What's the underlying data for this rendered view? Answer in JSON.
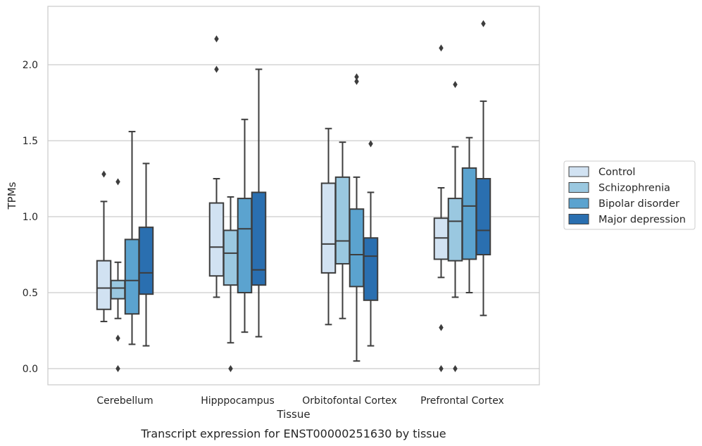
{
  "chart_data": {
    "type": "boxplot",
    "title": "Transcript expression for ENST00000251630 by tissue",
    "xlabel": "Tissue",
    "ylabel": "TPMs",
    "ylim": [
      -0.11,
      2.4
    ],
    "yticks": [
      0.0,
      0.5,
      1.0,
      1.5,
      2.0
    ],
    "ytick_labels": [
      "0.0",
      "0.5",
      "1.0",
      "1.5",
      "2.0"
    ],
    "grid": "horizontal",
    "legend_position": "right",
    "categories": [
      "Cerebellum",
      "Hipppocampus",
      "Orbitofontal Cortex",
      "Prefrontal Cortex"
    ],
    "series": [
      {
        "name": "Control",
        "color": "#d1e2f2",
        "boxes": [
          {
            "whislo": 0.31,
            "q1": 0.39,
            "med": 0.53,
            "q3": 0.71,
            "whishi": 1.1,
            "fliers": [
              1.28
            ]
          },
          {
            "whislo": 0.47,
            "q1": 0.61,
            "med": 0.8,
            "q3": 1.09,
            "whishi": 1.25,
            "fliers": [
              1.97,
              2.17
            ]
          },
          {
            "whislo": 0.29,
            "q1": 0.63,
            "med": 0.82,
            "q3": 1.22,
            "whishi": 1.58,
            "fliers": []
          },
          {
            "whislo": 0.6,
            "q1": 0.72,
            "med": 0.86,
            "q3": 0.99,
            "whishi": 1.19,
            "fliers": [
              0.0,
              0.27,
              2.11
            ]
          }
        ]
      },
      {
        "name": "Schizophrenia",
        "color": "#9ac8e0",
        "boxes": [
          {
            "whislo": 0.33,
            "q1": 0.46,
            "med": 0.53,
            "q3": 0.58,
            "whishi": 0.7,
            "fliers": [
              0.0,
              0.2,
              1.23
            ]
          },
          {
            "whislo": 0.17,
            "q1": 0.55,
            "med": 0.76,
            "q3": 0.91,
            "whishi": 1.13,
            "fliers": [
              0.0
            ]
          },
          {
            "whislo": 0.33,
            "q1": 0.69,
            "med": 0.84,
            "q3": 1.26,
            "whishi": 1.49,
            "fliers": []
          },
          {
            "whislo": 0.47,
            "q1": 0.71,
            "med": 0.97,
            "q3": 1.12,
            "whishi": 1.46,
            "fliers": [
              0.0,
              1.87
            ]
          }
        ]
      },
      {
        "name": "Bipolar disorder",
        "color": "#5ba3cf",
        "boxes": [
          {
            "whislo": 0.16,
            "q1": 0.36,
            "med": 0.58,
            "q3": 0.85,
            "whishi": 1.56,
            "fliers": []
          },
          {
            "whislo": 0.24,
            "q1": 0.5,
            "med": 0.92,
            "q3": 1.12,
            "whishi": 1.64,
            "fliers": []
          },
          {
            "whislo": 0.05,
            "q1": 0.54,
            "med": 0.75,
            "q3": 1.05,
            "whishi": 1.26,
            "fliers": [
              1.89,
              1.92
            ]
          },
          {
            "whislo": 0.5,
            "q1": 0.72,
            "med": 1.07,
            "q3": 1.32,
            "whishi": 1.52,
            "fliers": []
          }
        ]
      },
      {
        "name": "Major depression",
        "color": "#2a6fb0",
        "boxes": [
          {
            "whislo": 0.15,
            "q1": 0.49,
            "med": 0.63,
            "q3": 0.93,
            "whishi": 1.35,
            "fliers": []
          },
          {
            "whislo": 0.21,
            "q1": 0.55,
            "med": 0.65,
            "q3": 1.16,
            "whishi": 1.97,
            "fliers": []
          },
          {
            "whislo": 0.15,
            "q1": 0.45,
            "med": 0.74,
            "q3": 0.86,
            "whishi": 1.16,
            "fliers": [
              1.48
            ]
          },
          {
            "whislo": 0.35,
            "q1": 0.75,
            "med": 0.91,
            "q3": 1.25,
            "whishi": 1.76,
            "fliers": [
              2.27
            ]
          }
        ]
      }
    ]
  }
}
